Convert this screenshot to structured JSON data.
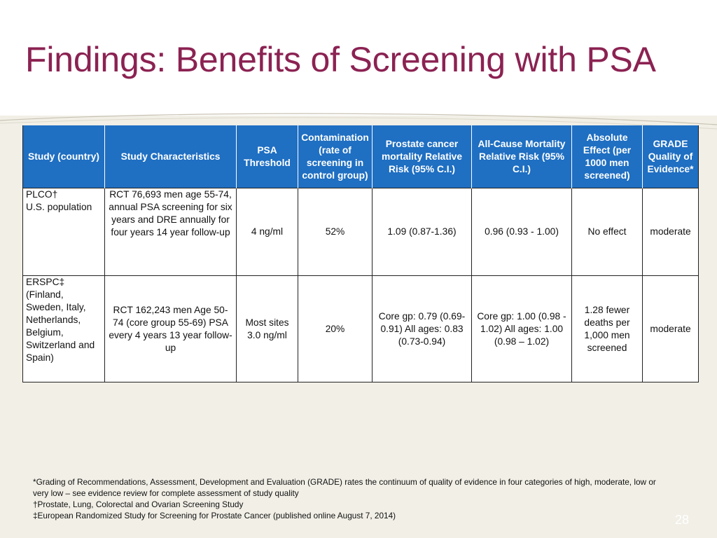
{
  "slide": {
    "title": "Findings: Benefits of Screening with PSA",
    "number": "28"
  },
  "colors": {
    "title": "#8b2252",
    "header_bg": "#1f6fc2",
    "background": "#f1efe6"
  },
  "table": {
    "headers": [
      "Study (country)",
      "Study Characteristics",
      "PSA Threshold",
      "Contamination (rate of screening in control group)",
      "Prostate cancer mortality Relative Risk (95% C.I.)",
      "All-Cause Mortality Relative Risk (95% C.I.)",
      "Absolute Effect (per 1000 men screened)",
      "GRADE Quality of Evidence*"
    ],
    "rows": [
      {
        "study_name": "PLCO†",
        "study_country": "U.S. population",
        "characteristics": "RCT 76,693 men age 55-74, annual PSA screening for six years and DRE annually for four years 14 year follow-up",
        "psa_threshold": "4 ng/ml",
        "contamination": "52%",
        "pc_mortality_rr": "1.09 (0.87-1.36)",
        "allcause_rr": "0.96 (0.93 - 1.00)",
        "absolute_effect": "No effect",
        "grade": "moderate"
      },
      {
        "study_name": "ERSPC‡",
        "study_country": "(Finland, Sweden, Italy, Netherlands, Belgium, Switzerland and Spain)",
        "characteristics": "RCT 162,243 men Age 50-74 (core group 55-69) PSA every 4 years 13 year follow-up",
        "psa_threshold": "Most sites 3.0 ng/ml",
        "contamination": "20%",
        "pc_mortality_rr": "Core gp: 0.79 (0.69-0.91) All ages: 0.83 (0.73-0.94)",
        "allcause_rr": "Core gp: 1.00 (0.98 - 1.02) All ages: 1.00 (0.98 – 1.02)",
        "absolute_effect": "1.28 fewer deaths per 1,000 men screened",
        "grade": "moderate"
      }
    ]
  },
  "footnotes": [
    "*Grading of Recommendations, Assessment, Development and Evaluation (GRADE) rates the continuum of quality of evidence in four categories of high, moderate, low or very low – see evidence review for complete assessment of study quality",
    "†Prostate, Lung, Colorectal and Ovarian Screening Study",
    "‡European Randomized Study for Screening for Prostate Cancer (published online August 7, 2014)"
  ]
}
